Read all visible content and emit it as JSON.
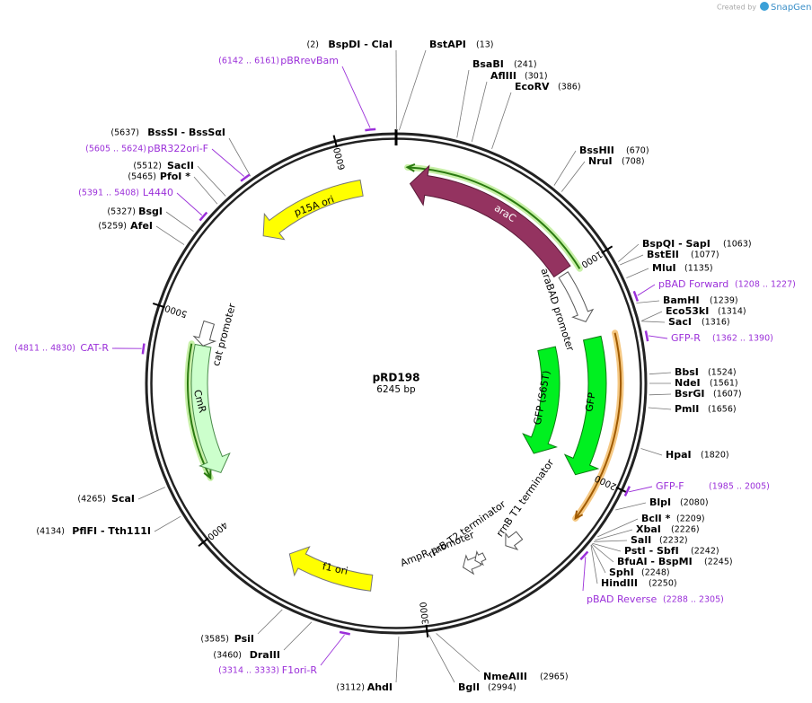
{
  "header": {
    "created_by": "Created by",
    "brand": "SnapGene"
  },
  "plasmid": {
    "name": "pRD198",
    "size": "6245 bp"
  },
  "ticks": [
    "1000",
    "2000",
    "3000",
    "4000",
    "5000",
    "6000"
  ],
  "features": [
    "araC",
    "araBAD promoter",
    "GFP",
    "GFP (S65T)",
    "rrnB T1 terminator",
    "rrnB T2 terminator",
    "AmpR promoter",
    "f1 ori",
    "CmR",
    "cat promoter",
    "p15A ori"
  ],
  "sites": [
    {
      "name": "BspDI - ClaI",
      "position": "(2)"
    },
    {
      "name": "BstAPI",
      "position": "(13)"
    },
    {
      "name": "BsaBI",
      "position": "(241)"
    },
    {
      "name": "AflIII",
      "position": "(301)"
    },
    {
      "name": "EcoRV",
      "position": "(386)"
    },
    {
      "name": "BssHII",
      "position": "(670)"
    },
    {
      "name": "NruI",
      "position": "(708)"
    },
    {
      "name": "BspQI - SapI",
      "position": "(1063)"
    },
    {
      "name": "BstEII",
      "position": "(1077)"
    },
    {
      "name": "MluI",
      "position": "(1135)"
    },
    {
      "name": "BamHI",
      "position": "(1239)"
    },
    {
      "name": "Eco53kI",
      "position": "(1314)"
    },
    {
      "name": "SacI",
      "position": "(1316)"
    },
    {
      "name": "BbsI",
      "position": "(1524)"
    },
    {
      "name": "NdeI",
      "position": "(1561)"
    },
    {
      "name": "BsrGI",
      "position": "(1607)"
    },
    {
      "name": "PmlI",
      "position": "(1656)"
    },
    {
      "name": "HpaI",
      "position": "(1820)"
    },
    {
      "name": "BlpI",
      "position": "(2080)"
    },
    {
      "name": "BclI *",
      "position": "(2209)"
    },
    {
      "name": "XbaI",
      "position": "(2226)"
    },
    {
      "name": "SalI",
      "position": "(2232)"
    },
    {
      "name": "PstI - SbfI",
      "position": "(2242)"
    },
    {
      "name": "BfuAI - BspMI",
      "position": "(2245)"
    },
    {
      "name": "SphI",
      "position": "(2248)"
    },
    {
      "name": "HindIII",
      "position": "(2250)"
    },
    {
      "name": "NmeAIII",
      "position": "(2965)"
    },
    {
      "name": "BglI",
      "position": "(2994)"
    },
    {
      "name": "AhdI",
      "position": "(3112)"
    },
    {
      "name": "DraIII",
      "position": "(3460)"
    },
    {
      "name": "PsiI",
      "position": "(3585)"
    },
    {
      "name": "PflFI - Tth111I",
      "position": "(4134)"
    },
    {
      "name": "ScaI",
      "position": "(4265)"
    },
    {
      "name": "AfeI",
      "position": "(5259)"
    },
    {
      "name": "BsgI",
      "position": "(5327)"
    },
    {
      "name": "PfoI *",
      "position": "(5465)"
    },
    {
      "name": "SacII",
      "position": "(5512)"
    },
    {
      "name": "BssSI - BssSαI",
      "position": "(5637)"
    }
  ],
  "primers": [
    {
      "name": "pBAD Forward",
      "range": "(1208 .. 1227)"
    },
    {
      "name": "GFP-R",
      "range": "(1362 .. 1390)"
    },
    {
      "name": "GFP-F",
      "range": "(1985 .. 2005)"
    },
    {
      "name": "pBAD Reverse",
      "range": "(2288 .. 2305)"
    },
    {
      "name": "F1ori-R",
      "range": "(3314 .. 3333)"
    },
    {
      "name": "CAT-R",
      "range": "(4811 .. 4830)"
    },
    {
      "name": "L4440",
      "range": "(5391 .. 5408)"
    },
    {
      "name": "pBR322ori-F",
      "range": "(5605 .. 5624)"
    },
    {
      "name": "pBRrevBam",
      "range": "(6142 .. 6161)"
    }
  ]
}
